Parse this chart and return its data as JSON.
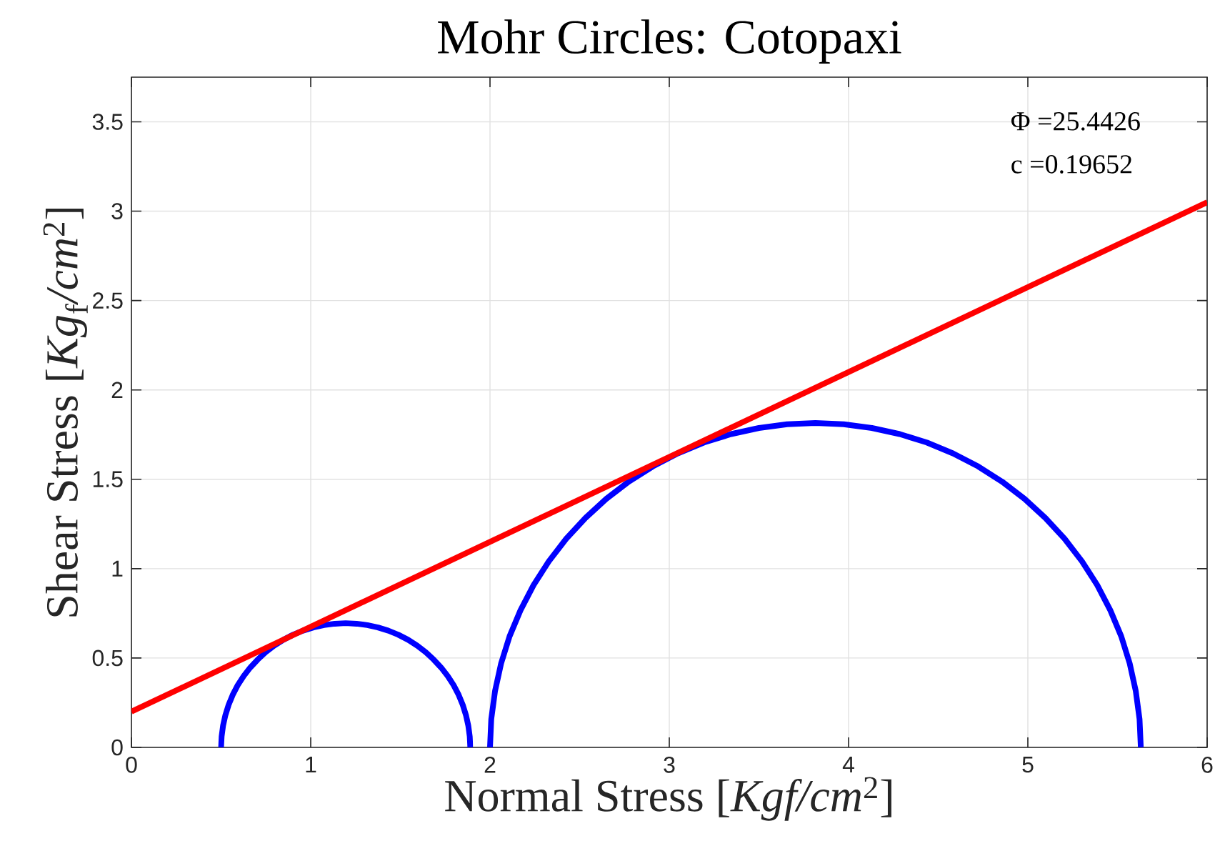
{
  "chart_data": {
    "type": "line",
    "title": "Mohr Circles: Cotopaxi",
    "xlabel": "Normal Stress [*Kgf/cm*$^{2}$]",
    "ylabel": "Shear Stress [*Kg*$_{f}$*/cm*$^{2}$]",
    "xlim": [
      0,
      6
    ],
    "ylim": [
      0,
      3.75
    ],
    "xticks": [
      0,
      1,
      2,
      3,
      4,
      5,
      6
    ],
    "yticks": [
      0,
      0.5,
      1,
      1.5,
      2,
      2.5,
      3,
      3.5
    ],
    "grid": true,
    "marker": "none",
    "series": [
      {
        "color": "#0000ff",
        "x": [
          0.5,
          0.503,
          0.511,
          0.524,
          0.542,
          0.565,
          0.593,
          0.626,
          0.663,
          0.704,
          0.748,
          0.796,
          0.848,
          0.901,
          0.957,
          1.015,
          1.074,
          1.134,
          1.195,
          1.256,
          1.316,
          1.375,
          1.433,
          1.489,
          1.543,
          1.594,
          1.642,
          1.686,
          1.727,
          1.764,
          1.797,
          1.825,
          1.848,
          1.866,
          1.879,
          1.887,
          1.89
        ],
        "values": [
          0,
          0.061,
          0.121,
          0.18,
          0.238,
          0.294,
          0.348,
          0.399,
          0.447,
          0.491,
          0.532,
          0.569,
          0.602,
          0.63,
          0.653,
          0.671,
          0.684,
          0.692,
          0.695,
          0.692,
          0.684,
          0.671,
          0.653,
          0.63,
          0.602,
          0.569,
          0.532,
          0.491,
          0.447,
          0.399,
          0.348,
          0.294,
          0.238,
          0.18,
          0.121,
          0.061,
          0
        ]
      },
      {
        "color": "#0000ff",
        "x": [
          2.0,
          2.007,
          2.028,
          2.062,
          2.109,
          2.17,
          2.243,
          2.328,
          2.425,
          2.532,
          2.648,
          2.774,
          2.908,
          3.048,
          3.194,
          3.345,
          3.5,
          3.657,
          3.815,
          3.973,
          4.13,
          4.285,
          4.436,
          4.582,
          4.723,
          4.856,
          4.982,
          5.098,
          5.205,
          5.302,
          5.387,
          5.46,
          5.521,
          5.568,
          5.602,
          5.623,
          5.63
        ],
        "values": [
          0,
          0.158,
          0.315,
          0.47,
          0.621,
          0.767,
          0.908,
          1.041,
          1.167,
          1.283,
          1.39,
          1.487,
          1.572,
          1.645,
          1.706,
          1.753,
          1.787,
          1.808,
          1.815,
          1.808,
          1.787,
          1.753,
          1.706,
          1.645,
          1.572,
          1.487,
          1.39,
          1.283,
          1.167,
          1.041,
          0.908,
          0.767,
          0.621,
          0.47,
          0.315,
          0.158,
          0
        ]
      },
      {
        "color": "#ff0000",
        "x": [
          0,
          6
        ],
        "values": [
          0.2,
          3.05
        ]
      }
    ],
    "annotations": [
      "Φ =25.4426",
      "c =0.19652"
    ]
  }
}
